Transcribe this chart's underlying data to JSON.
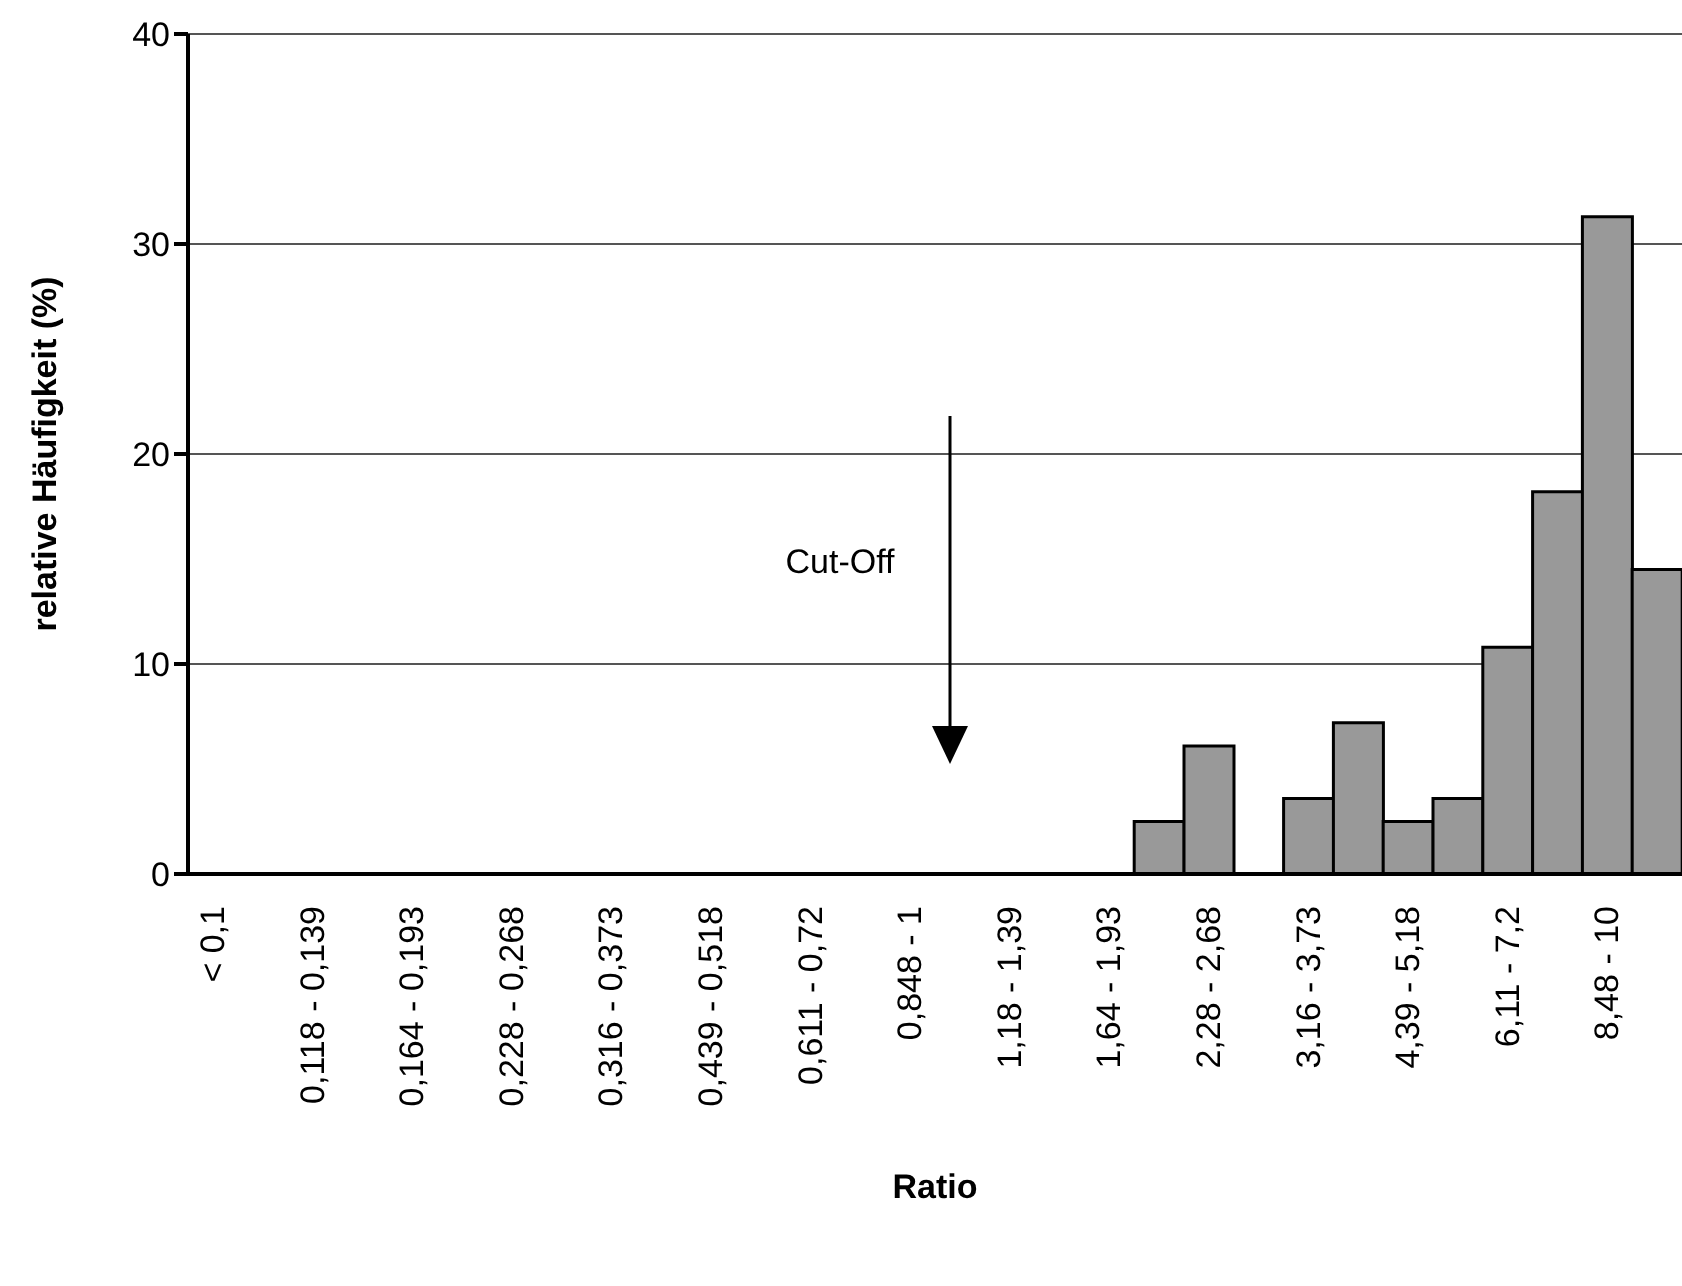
{
  "chart_data": {
    "type": "bar",
    "xlabel": "Ratio",
    "ylabel": "relative Häufigkeit (%)",
    "categories": [
      "< 0,1",
      null,
      "0,118 - 0,139",
      null,
      "0,164 - 0,193",
      null,
      "0,228 - 0,268",
      null,
      "0,316 - 0,373",
      null,
      "0,439 - 0,518",
      null,
      "0,611 - 0,72",
      null,
      "0,848 - 1",
      null,
      "1,18 - 1,39",
      null,
      "1,64 - 1,93",
      null,
      "2,28 - 2,68",
      null,
      "3,16 - 3,73",
      null,
      "4,39 - 5,18",
      null,
      "6,11 - 7,2",
      null,
      "8,48 - 10",
      null
    ],
    "values": [
      0,
      0,
      0,
      0,
      0,
      0,
      0,
      0,
      0,
      0,
      0,
      0,
      0,
      0,
      0,
      0,
      0,
      0,
      0,
      2.5,
      6.1,
      0,
      3.6,
      7.2,
      2.5,
      3.6,
      10.8,
      18.2,
      31.3,
      14.5
    ],
    "color": "#999999",
    "ylim": [
      0,
      40
    ],
    "yticks": [
      0,
      10,
      20,
      30,
      40
    ],
    "grid": "y",
    "annotations": [
      "Cut-Off"
    ]
  }
}
